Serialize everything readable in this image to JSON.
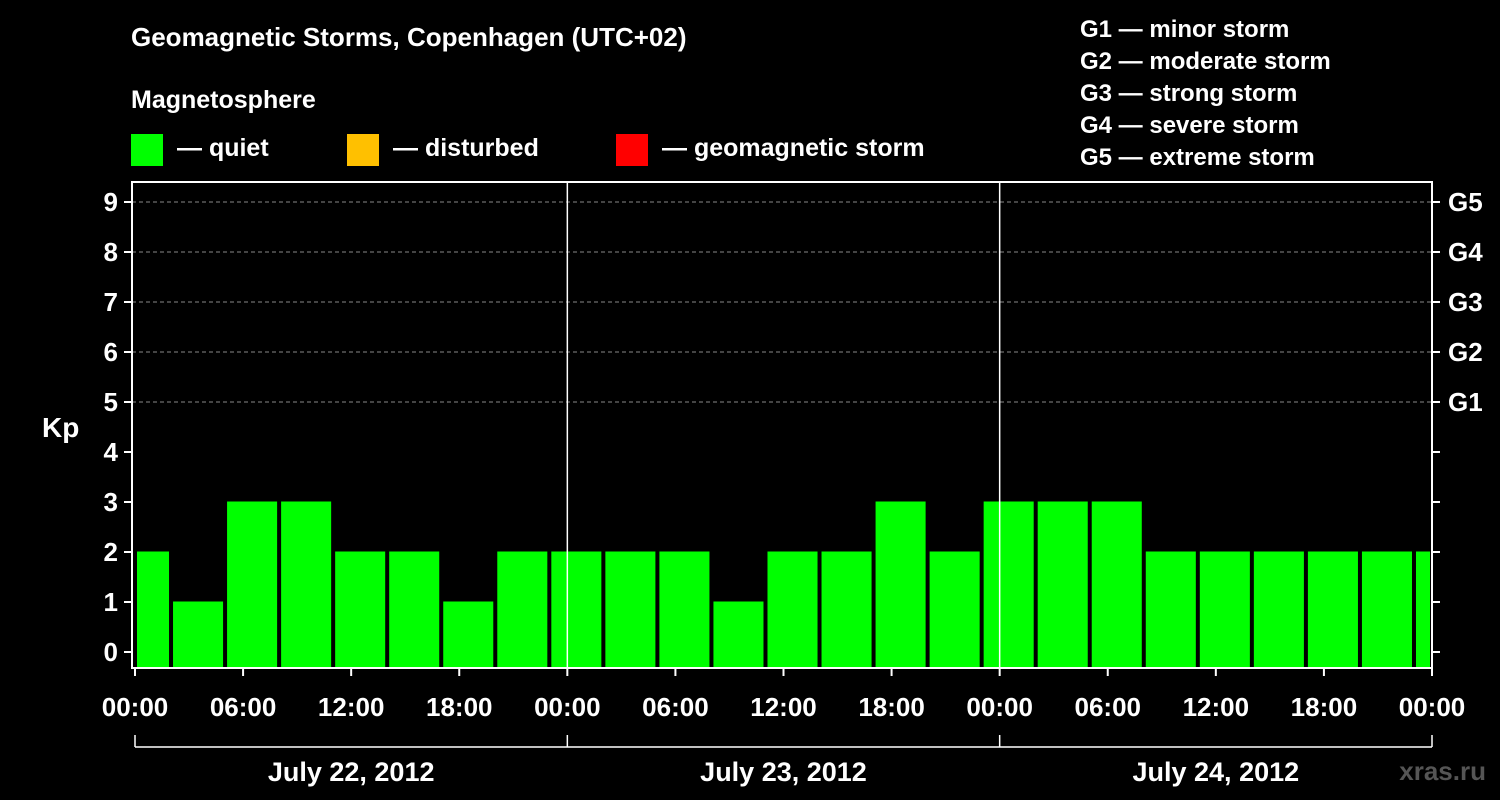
{
  "title": "Geomagnetic Storms, Copenhagen (UTC+02)",
  "magnetosphere_label": "Magnetosphere",
  "legend": [
    {
      "label": "— quiet",
      "color": "#00ff00"
    },
    {
      "label": "— disturbed",
      "color": "#ffc000"
    },
    {
      "label": "— geomagnetic storm",
      "color": "#ff0000"
    }
  ],
  "storm_scale": [
    "G1 — minor storm",
    "G2 — moderate storm",
    "G3 — strong storm",
    "G4 — severe storm",
    "G5 — extreme storm"
  ],
  "watermark": "xras.ru",
  "chart_data": {
    "type": "bar",
    "ylabel": "Kp",
    "ylim": [
      0,
      9
    ],
    "y_ticks": [
      "0",
      "1",
      "2",
      "3",
      "4",
      "5",
      "6",
      "7",
      "8",
      "9"
    ],
    "right_ticks": [
      {
        "kp": 5,
        "label": "G1"
      },
      {
        "kp": 6,
        "label": "G2"
      },
      {
        "kp": 7,
        "label": "G3"
      },
      {
        "kp": 8,
        "label": "G4"
      },
      {
        "kp": 9,
        "label": "G5"
      }
    ],
    "x_tick_labels": [
      "00:00",
      "06:00",
      "12:00",
      "18:00",
      "00:00",
      "06:00",
      "12:00",
      "18:00",
      "00:00",
      "06:00",
      "12:00",
      "18:00",
      "00:00"
    ],
    "days": [
      "July 22, 2012",
      "July 23, 2012",
      "July 24, 2012"
    ],
    "grid": "horizontal dashed at Kp 5-9",
    "bar_color": "#00ff00",
    "bars": [
      {
        "start": "2012-07-22 00:00",
        "end": "2012-07-22 02:00",
        "kp": 2
      },
      {
        "start": "2012-07-22 02:00",
        "end": "2012-07-22 05:00",
        "kp": 1
      },
      {
        "start": "2012-07-22 05:00",
        "end": "2012-07-22 08:00",
        "kp": 3
      },
      {
        "start": "2012-07-22 08:00",
        "end": "2012-07-22 11:00",
        "kp": 3
      },
      {
        "start": "2012-07-22 11:00",
        "end": "2012-07-22 14:00",
        "kp": 2
      },
      {
        "start": "2012-07-22 14:00",
        "end": "2012-07-22 17:00",
        "kp": 2
      },
      {
        "start": "2012-07-22 17:00",
        "end": "2012-07-22 20:00",
        "kp": 1
      },
      {
        "start": "2012-07-22 20:00",
        "end": "2012-07-22 23:00",
        "kp": 2
      },
      {
        "start": "2012-07-22 23:00",
        "end": "2012-07-23 02:00",
        "kp": 2
      },
      {
        "start": "2012-07-23 02:00",
        "end": "2012-07-23 05:00",
        "kp": 2
      },
      {
        "start": "2012-07-23 05:00",
        "end": "2012-07-23 08:00",
        "kp": 2
      },
      {
        "start": "2012-07-23 08:00",
        "end": "2012-07-23 11:00",
        "kp": 1
      },
      {
        "start": "2012-07-23 11:00",
        "end": "2012-07-23 14:00",
        "kp": 2
      },
      {
        "start": "2012-07-23 14:00",
        "end": "2012-07-23 17:00",
        "kp": 2
      },
      {
        "start": "2012-07-23 17:00",
        "end": "2012-07-23 20:00",
        "kp": 3
      },
      {
        "start": "2012-07-23 20:00",
        "end": "2012-07-23 23:00",
        "kp": 2
      },
      {
        "start": "2012-07-23 23:00",
        "end": "2012-07-24 02:00",
        "kp": 3
      },
      {
        "start": "2012-07-24 02:00",
        "end": "2012-07-24 05:00",
        "kp": 3
      },
      {
        "start": "2012-07-24 05:00",
        "end": "2012-07-24 08:00",
        "kp": 3
      },
      {
        "start": "2012-07-24 08:00",
        "end": "2012-07-24 11:00",
        "kp": 2
      },
      {
        "start": "2012-07-24 11:00",
        "end": "2012-07-24 14:00",
        "kp": 2
      },
      {
        "start": "2012-07-24 14:00",
        "end": "2012-07-24 17:00",
        "kp": 2
      },
      {
        "start": "2012-07-24 17:00",
        "end": "2012-07-24 20:00",
        "kp": 2
      },
      {
        "start": "2012-07-24 20:00",
        "end": "2012-07-24 23:00",
        "kp": 2
      },
      {
        "start": "2012-07-24 23:00",
        "end": "2012-07-25 00:00",
        "kp": 2
      }
    ]
  }
}
